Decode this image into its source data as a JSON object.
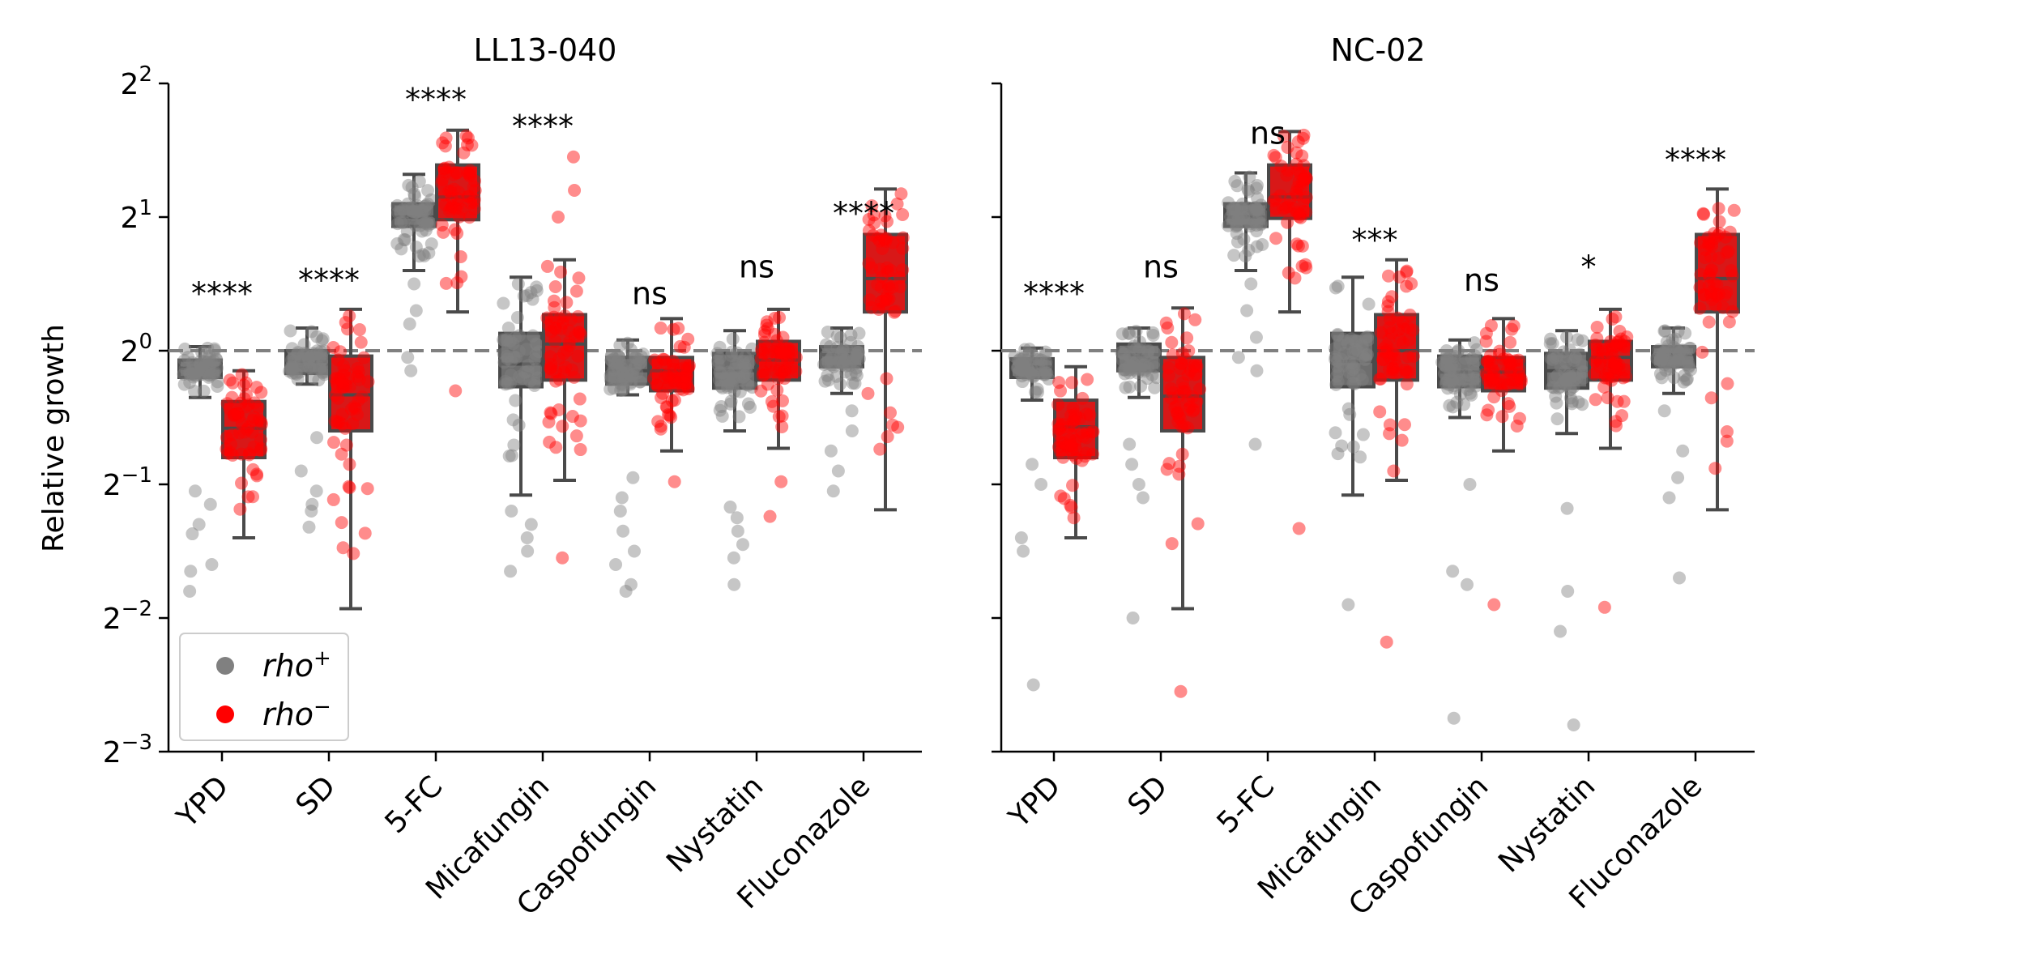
{
  "chart_data": {
    "type": "box",
    "ylabel": "Relative growth",
    "yscale": "log2",
    "ylim_exponent": [
      -3,
      2
    ],
    "yticks": [
      {
        "base": "2",
        "exp": "−3",
        "value": -3
      },
      {
        "base": "2",
        "exp": "−2",
        "value": -2
      },
      {
        "base": "2",
        "exp": "−1",
        "value": -1
      },
      {
        "base": "2",
        "exp": "0",
        "value": 0
      },
      {
        "base": "2",
        "exp": "1",
        "value": 1
      },
      {
        "base": "2",
        "exp": "2",
        "value": 2
      }
    ],
    "reference_line_exponent": 0,
    "categories": [
      "YPD",
      "SD",
      "5-FC",
      "Micafungin",
      "Caspofungin",
      "Nystatin",
      "Fluconazole"
    ],
    "legend": {
      "position": "lower-left",
      "entries": [
        {
          "label": "rho",
          "sup": "+",
          "color": "#808080"
        },
        {
          "label": "rho",
          "sup": "−",
          "color": "#ff0000"
        }
      ]
    },
    "colors": {
      "rho_plus": "#808080",
      "rho_minus": "#ff0000",
      "box_edge": "#4a4a4a",
      "ref_line": "#808080"
    },
    "panels": [
      {
        "title": "LL13-040",
        "show_yticklabels": true,
        "significance": [
          "****",
          "****",
          "****",
          "****",
          "ns",
          "ns",
          "****"
        ],
        "sig_y": [
          0.35,
          0.45,
          1.8,
          1.6,
          0.35,
          0.55,
          0.95
        ],
        "boxes": [
          {
            "plus": {
              "wlo": -0.35,
              "q1": -0.2,
              "med": -0.13,
              "q3": -0.07,
              "whi": 0.03
            },
            "minus": {
              "wlo": -1.4,
              "q1": -0.8,
              "med": -0.58,
              "q3": -0.38,
              "whi": -0.15
            },
            "plus_out": [
              -1.05,
              -1.15,
              -1.3,
              -1.37,
              -1.6,
              -1.65,
              -1.8
            ],
            "minus_out": []
          },
          {
            "plus": {
              "wlo": -0.25,
              "q1": -0.17,
              "med": -0.08,
              "q3": 0.0,
              "whi": 0.17
            },
            "minus": {
              "wlo": -1.93,
              "q1": -0.6,
              "med": -0.33,
              "q3": -0.04,
              "whi": 0.31
            },
            "plus_out": [
              -0.65,
              -0.9,
              -1.05,
              -1.15,
              -1.2,
              -1.32
            ],
            "minus_out": []
          },
          {
            "plus": {
              "wlo": 0.6,
              "q1": 0.93,
              "med": 1.0,
              "q3": 1.1,
              "whi": 1.32
            },
            "minus": {
              "wlo": 0.29,
              "q1": 0.98,
              "med": 1.15,
              "q3": 1.39,
              "whi": 1.65
            },
            "plus_out": [
              0.5,
              0.3,
              0.2,
              -0.05,
              -0.15
            ],
            "minus_out": [
              -0.3
            ]
          },
          {
            "plus": {
              "wlo": -1.08,
              "q1": -0.27,
              "med": -0.1,
              "q3": 0.13,
              "whi": 0.55
            },
            "minus": {
              "wlo": -0.97,
              "q1": -0.22,
              "med": 0.05,
              "q3": 0.27,
              "whi": 0.68
            },
            "plus_out": [
              -1.2,
              -1.3,
              -1.4,
              -1.5,
              -1.65
            ],
            "minus_out": [
              -1.55,
              1.0,
              1.2,
              1.45
            ]
          },
          {
            "plus": {
              "wlo": -0.33,
              "q1": -0.25,
              "med": -0.15,
              "q3": -0.05,
              "whi": 0.08
            },
            "minus": {
              "wlo": -0.75,
              "q1": -0.3,
              "med": -0.15,
              "q3": -0.05,
              "whi": 0.24
            },
            "plus_out": [
              -0.95,
              -1.1,
              -1.2,
              -1.35,
              -1.5,
              -1.6,
              -1.75,
              -1.8
            ],
            "minus_out": [
              -0.98
            ]
          },
          {
            "plus": {
              "wlo": -0.6,
              "q1": -0.28,
              "med": -0.15,
              "q3": -0.02,
              "whi": 0.15
            },
            "minus": {
              "wlo": -0.73,
              "q1": -0.22,
              "med": -0.07,
              "q3": 0.07,
              "whi": 0.31
            },
            "plus_out": [
              -1.17,
              -1.25,
              -1.35,
              -1.45,
              -1.55,
              -1.75
            ],
            "minus_out": [
              -0.98,
              -1.24
            ]
          },
          {
            "plus": {
              "wlo": -0.32,
              "q1": -0.12,
              "med": -0.03,
              "q3": 0.03,
              "whi": 0.17
            },
            "minus": {
              "wlo": -1.19,
              "q1": 0.29,
              "med": 0.54,
              "q3": 0.87,
              "whi": 1.21
            },
            "plus_out": [
              -0.45,
              -0.6,
              -0.75,
              -0.9,
              -1.05
            ],
            "minus_out": []
          }
        ]
      },
      {
        "title": "NC-02",
        "show_yticklabels": false,
        "significance": [
          "****",
          "ns",
          "ns",
          "***",
          "ns",
          "*",
          "****"
        ],
        "sig_y": [
          0.35,
          0.55,
          1.55,
          0.75,
          0.45,
          0.55,
          1.35
        ],
        "boxes": [
          {
            "plus": {
              "wlo": -0.37,
              "q1": -0.2,
              "med": -0.12,
              "q3": -0.06,
              "whi": 0.02
            },
            "minus": {
              "wlo": -1.4,
              "q1": -0.8,
              "med": -0.57,
              "q3": -0.37,
              "whi": -0.12
            },
            "plus_out": [
              -0.85,
              -1.0,
              -1.4,
              -1.5,
              -2.5
            ],
            "minus_out": [
              -1.25
            ]
          },
          {
            "plus": {
              "wlo": -0.35,
              "q1": -0.15,
              "med": -0.03,
              "q3": 0.05,
              "whi": 0.17
            },
            "minus": {
              "wlo": -1.93,
              "q1": -0.6,
              "med": -0.34,
              "q3": -0.05,
              "whi": 0.32
            },
            "plus_out": [
              -0.7,
              -0.85,
              -1.0,
              -1.1,
              -2.0
            ],
            "minus_out": [
              -2.55
            ]
          },
          {
            "plus": {
              "wlo": 0.6,
              "q1": 0.93,
              "med": 1.0,
              "q3": 1.1,
              "whi": 1.33
            },
            "minus": {
              "wlo": 0.29,
              "q1": 0.99,
              "med": 1.15,
              "q3": 1.39,
              "whi": 1.64
            },
            "plus_out": [
              0.5,
              0.3,
              0.1,
              -0.05,
              -0.15,
              -0.7
            ],
            "minus_out": [
              -1.33
            ]
          },
          {
            "plus": {
              "wlo": -1.08,
              "q1": -0.27,
              "med": -0.08,
              "q3": 0.13,
              "whi": 0.55
            },
            "minus": {
              "wlo": -0.97,
              "q1": -0.22,
              "med": 0.0,
              "q3": 0.27,
              "whi": 0.68
            },
            "plus_out": [
              -1.9
            ],
            "minus_out": [
              -0.9,
              -2.18
            ]
          },
          {
            "plus": {
              "wlo": -0.5,
              "q1": -0.27,
              "med": -0.16,
              "q3": -0.04,
              "whi": 0.08
            },
            "minus": {
              "wlo": -0.75,
              "q1": -0.3,
              "med": -0.16,
              "q3": -0.05,
              "whi": 0.24
            },
            "plus_out": [
              -1.0,
              -1.65,
              -1.75,
              -2.75
            ],
            "minus_out": [
              -1.9
            ]
          },
          {
            "plus": {
              "wlo": -0.62,
              "q1": -0.28,
              "med": -0.15,
              "q3": -0.02,
              "whi": 0.15
            },
            "minus": {
              "wlo": -0.73,
              "q1": -0.22,
              "med": -0.05,
              "q3": 0.07,
              "whi": 0.31
            },
            "plus_out": [
              -1.18,
              -1.8,
              -2.1,
              -2.8
            ],
            "minus_out": [
              -1.92
            ]
          },
          {
            "plus": {
              "wlo": -0.32,
              "q1": -0.12,
              "med": -0.03,
              "q3": 0.03,
              "whi": 0.17
            },
            "minus": {
              "wlo": -1.19,
              "q1": 0.29,
              "med": 0.54,
              "q3": 0.87,
              "whi": 1.21
            },
            "plus_out": [
              -0.45,
              -0.75,
              -0.95,
              -1.1,
              -1.7
            ],
            "minus_out": [
              -0.88
            ]
          }
        ]
      }
    ]
  }
}
